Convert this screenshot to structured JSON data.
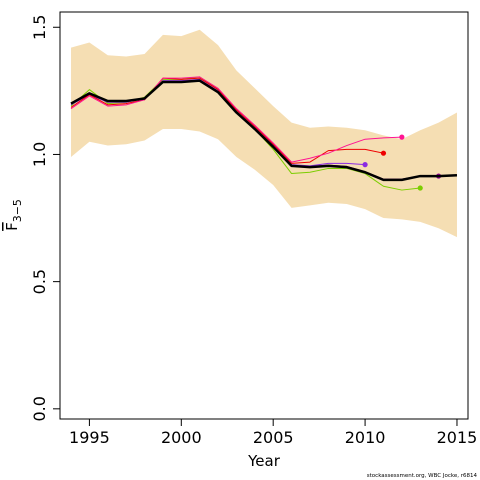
{
  "chart_data": {
    "type": "line",
    "xlabel": "Year",
    "ylabel": "F",
    "ylabel_subscript": "3−5",
    "xlim": [
      1993.4,
      2015.6
    ],
    "ylim": [
      -0.04,
      1.56
    ],
    "xticks": [
      1995,
      2000,
      2005,
      2010,
      2015
    ],
    "xtick_labels": [
      "1995",
      "2000",
      "2005",
      "2010",
      "2015"
    ],
    "yticks": [
      0.0,
      0.5,
      1.0,
      1.5
    ],
    "ytick_labels": [
      "0.0",
      "0.5",
      "1.0",
      "1.5"
    ],
    "grid": false,
    "legend": "none",
    "band": {
      "color": "#f5deb3",
      "x": [
        1994,
        1995,
        1996,
        1997,
        1998,
        1999,
        2000,
        2001,
        2002,
        2003,
        2004,
        2005,
        2006,
        2007,
        2008,
        2009,
        2010,
        2011,
        2012,
        2013,
        2014,
        2015
      ],
      "upper": [
        1.42,
        1.44,
        1.39,
        1.385,
        1.395,
        1.47,
        1.465,
        1.49,
        1.43,
        1.33,
        1.26,
        1.19,
        1.125,
        1.105,
        1.11,
        1.105,
        1.095,
        1.075,
        1.06,
        1.095,
        1.125,
        1.165
      ],
      "lower": [
        0.99,
        1.05,
        1.035,
        1.04,
        1.055,
        1.1,
        1.1,
        1.09,
        1.06,
        0.99,
        0.94,
        0.88,
        0.79,
        0.8,
        0.81,
        0.805,
        0.785,
        0.75,
        0.745,
        0.735,
        0.71,
        0.675
      ]
    },
    "series": [
      {
        "color": "#000000",
        "width": 2.5,
        "marker": false,
        "x": [
          1994,
          1995,
          1996,
          1997,
          1998,
          1999,
          2000,
          2001,
          2002,
          2003,
          2004,
          2005,
          2006,
          2007,
          2008,
          2009,
          2010,
          2011,
          2012,
          2013,
          2014,
          2015
        ],
        "y": [
          1.2,
          1.24,
          1.21,
          1.21,
          1.22,
          1.285,
          1.285,
          1.29,
          1.245,
          1.165,
          1.1,
          1.03,
          0.955,
          0.95,
          0.955,
          0.95,
          0.93,
          0.9,
          0.9,
          0.915,
          0.915,
          0.918
        ]
      },
      {
        "color": "#8b008b",
        "width": 1,
        "marker": true,
        "x": [
          1994,
          1995,
          1996,
          1997,
          1998,
          1999,
          2000,
          2001,
          2002,
          2003,
          2004,
          2005,
          2006,
          2007,
          2008,
          2009,
          2010,
          2011,
          2012,
          2013,
          2014
        ],
        "y": [
          1.198,
          1.238,
          1.208,
          1.208,
          1.219,
          1.287,
          1.286,
          1.292,
          1.248,
          1.168,
          1.102,
          1.032,
          0.958,
          0.953,
          0.958,
          0.953,
          0.932,
          0.903,
          0.903,
          0.916,
          0.915
        ]
      },
      {
        "color": "#7ccd00",
        "width": 1,
        "marker": true,
        "x": [
          1994,
          1995,
          1996,
          1997,
          1998,
          1999,
          2000,
          2001,
          2002,
          2003,
          2004,
          2005,
          2006,
          2007,
          2008,
          2009,
          2010,
          2011,
          2012,
          2013
        ],
        "y": [
          1.19,
          1.255,
          1.2,
          1.205,
          1.225,
          1.295,
          1.295,
          1.305,
          1.255,
          1.17,
          1.1,
          1.02,
          0.925,
          0.93,
          0.945,
          0.945,
          0.925,
          0.875,
          0.86,
          0.868
        ]
      },
      {
        "color": "#8a2be2",
        "width": 1,
        "marker": true,
        "x": [
          1994,
          1995,
          1996,
          1997,
          1998,
          1999,
          2000,
          2001,
          2002,
          2003,
          2004,
          2005,
          2006,
          2007,
          2008,
          2009,
          2010
        ],
        "y": [
          1.195,
          1.235,
          1.205,
          1.205,
          1.22,
          1.29,
          1.29,
          1.295,
          1.25,
          1.17,
          1.105,
          1.035,
          0.96,
          0.955,
          0.965,
          0.965,
          0.96
        ]
      },
      {
        "color": "#ee0000",
        "width": 1,
        "marker": true,
        "x": [
          1994,
          1995,
          1996,
          1997,
          1998,
          1999,
          2000,
          2001,
          2002,
          2003,
          2004,
          2005,
          2006,
          2007,
          2008,
          2009,
          2010,
          2011
        ],
        "y": [
          1.185,
          1.235,
          1.195,
          1.2,
          1.215,
          1.3,
          1.295,
          1.3,
          1.255,
          1.175,
          1.11,
          1.04,
          0.965,
          0.97,
          1.015,
          1.02,
          1.02,
          1.005
        ]
      },
      {
        "color": "#ff1493",
        "width": 1,
        "marker": true,
        "x": [
          1994,
          1995,
          1996,
          1997,
          1998,
          1999,
          2000,
          2001,
          2002,
          2003,
          2004,
          2005,
          2006,
          2007,
          2008,
          2009,
          2010,
          2011,
          2012
        ],
        "y": [
          1.18,
          1.23,
          1.19,
          1.195,
          1.215,
          1.3,
          1.3,
          1.305,
          1.26,
          1.18,
          1.115,
          1.045,
          0.97,
          0.985,
          1.005,
          1.035,
          1.06,
          1.065,
          1.068
        ]
      }
    ],
    "footer": "stockassessment.org, WBC Jocke, r6814"
  }
}
